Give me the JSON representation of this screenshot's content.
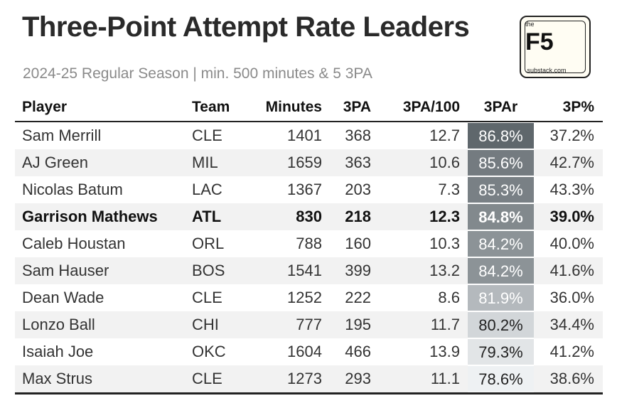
{
  "title": "Three-Point Attempt Rate Leaders",
  "subtitle": "2024-25 Regular Season | min. 500 minutes & 5 3PA",
  "logo": {
    "top": "the",
    "main": "F5",
    "bottom": ".substack.com"
  },
  "colors": {
    "scale_high": "#5f676c",
    "scale_low": "#eef1f3"
  },
  "chart_data": {
    "type": "table",
    "title": "Three-Point Attempt Rate Leaders",
    "subtitle": "2024-25 Regular Season | min. 500 minutes & 5 3PA",
    "columns": [
      "Player",
      "Team",
      "Minutes",
      "3PA",
      "3PA/100",
      "3PAr",
      "3P%"
    ],
    "highlighted_row": "Garrison Mathews",
    "rows": [
      {
        "player": "Sam Merrill",
        "team": "CLE",
        "minutes": "1401",
        "tpa": "368",
        "tpa100": "12.7",
        "tpar": "86.8%",
        "tpar_value": 86.8,
        "tpp": "37.2%"
      },
      {
        "player": "AJ Green",
        "team": "MIL",
        "minutes": "1659",
        "tpa": "363",
        "tpa100": "10.6",
        "tpar": "85.6%",
        "tpar_value": 85.6,
        "tpp": "42.7%"
      },
      {
        "player": "Nicolas Batum",
        "team": "LAC",
        "minutes": "1367",
        "tpa": "203",
        "tpa100": "7.3",
        "tpar": "85.3%",
        "tpar_value": 85.3,
        "tpp": "43.3%"
      },
      {
        "player": "Garrison Mathews",
        "team": "ATL",
        "minutes": "830",
        "tpa": "218",
        "tpa100": "12.3",
        "tpar": "84.8%",
        "tpar_value": 84.8,
        "tpp": "39.0%",
        "bold": true
      },
      {
        "player": "Caleb Houstan",
        "team": "ORL",
        "minutes": "788",
        "tpa": "160",
        "tpa100": "10.3",
        "tpar": "84.2%",
        "tpar_value": 84.2,
        "tpp": "40.0%"
      },
      {
        "player": "Sam Hauser",
        "team": "BOS",
        "minutes": "1541",
        "tpa": "399",
        "tpa100": "13.2",
        "tpar": "84.2%",
        "tpar_value": 84.2,
        "tpp": "41.6%"
      },
      {
        "player": "Dean Wade",
        "team": "CLE",
        "minutes": "1252",
        "tpa": "222",
        "tpa100": "8.6",
        "tpar": "81.9%",
        "tpar_value": 81.9,
        "tpp": "36.0%"
      },
      {
        "player": "Lonzo Ball",
        "team": "CHI",
        "minutes": "777",
        "tpa": "195",
        "tpa100": "11.7",
        "tpar": "80.2%",
        "tpar_value": 80.2,
        "tpp": "34.4%"
      },
      {
        "player": "Isaiah Joe",
        "team": "OKC",
        "minutes": "1604",
        "tpa": "466",
        "tpa100": "13.9",
        "tpar": "79.3%",
        "tpar_value": 79.3,
        "tpp": "41.2%"
      },
      {
        "player": "Max Strus",
        "team": "CLE",
        "minutes": "1273",
        "tpa": "293",
        "tpa100": "11.1",
        "tpar": "78.6%",
        "tpar_value": 78.6,
        "tpp": "38.6%"
      }
    ]
  }
}
